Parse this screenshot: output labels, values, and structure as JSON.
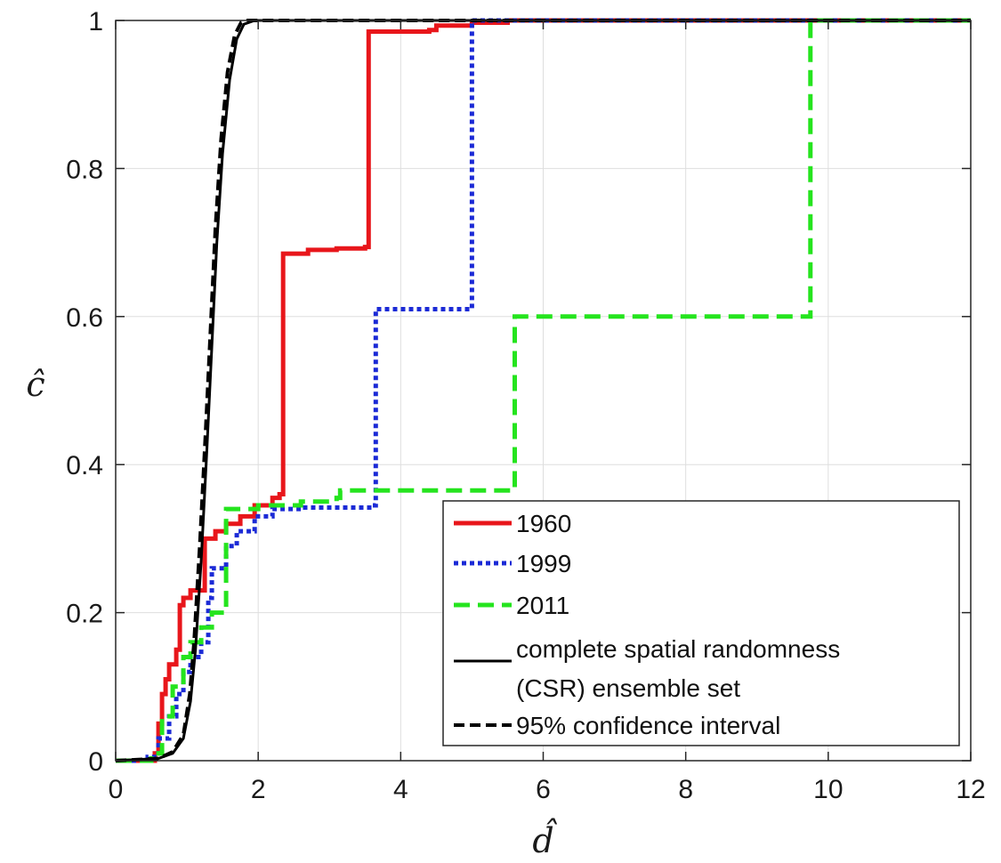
{
  "chart_data": {
    "type": "line",
    "xlabel": "d̂",
    "ylabel": "ĉ",
    "xlim": [
      0,
      12
    ],
    "ylim": [
      0,
      1
    ],
    "xticks": [
      0,
      2,
      4,
      6,
      8,
      10,
      12
    ],
    "yticks": [
      0,
      0.2,
      0.4,
      0.6,
      0.8,
      1
    ],
    "ytick_labels": [
      "0",
      "0.2",
      "0.4",
      "0.6",
      "0.8",
      "1"
    ],
    "grid": true,
    "legend_position": "bottom-right",
    "series": [
      {
        "name": "1960",
        "color": "#e8161b",
        "style": "solid",
        "step": true,
        "points": [
          [
            0,
            0
          ],
          [
            0.55,
            0.01
          ],
          [
            0.6,
            0.05
          ],
          [
            0.65,
            0.09
          ],
          [
            0.7,
            0.11
          ],
          [
            0.75,
            0.13
          ],
          [
            0.85,
            0.15
          ],
          [
            0.9,
            0.21
          ],
          [
            0.95,
            0.22
          ],
          [
            1.05,
            0.23
          ],
          [
            1.2,
            0.23
          ],
          [
            1.25,
            0.3
          ],
          [
            1.4,
            0.31
          ],
          [
            1.55,
            0.32
          ],
          [
            1.75,
            0.33
          ],
          [
            1.95,
            0.345
          ],
          [
            2.2,
            0.355
          ],
          [
            2.3,
            0.36
          ],
          [
            2.35,
            0.685
          ],
          [
            2.7,
            0.69
          ],
          [
            3.1,
            0.692
          ],
          [
            3.5,
            0.694
          ],
          [
            3.55,
            0.985
          ],
          [
            4.4,
            0.987
          ],
          [
            4.5,
            0.993
          ],
          [
            5.0,
            0.997
          ],
          [
            5.5,
            1.0
          ],
          [
            12,
            1.0
          ]
        ]
      },
      {
        "name": "1999",
        "color": "#1b2ad6",
        "style": "dotted",
        "step": true,
        "points": [
          [
            0,
            0
          ],
          [
            0.45,
            0.005
          ],
          [
            0.6,
            0.03
          ],
          [
            0.75,
            0.06
          ],
          [
            0.85,
            0.09
          ],
          [
            0.95,
            0.12
          ],
          [
            1.05,
            0.14
          ],
          [
            1.2,
            0.16
          ],
          [
            1.3,
            0.22
          ],
          [
            1.35,
            0.26
          ],
          [
            1.55,
            0.29
          ],
          [
            1.7,
            0.31
          ],
          [
            1.95,
            0.33
          ],
          [
            2.2,
            0.34
          ],
          [
            2.6,
            0.342
          ],
          [
            3.6,
            0.345
          ],
          [
            3.65,
            0.61
          ],
          [
            4.95,
            0.61
          ],
          [
            5.0,
            1.0
          ],
          [
            12,
            1.0
          ]
        ]
      },
      {
        "name": "2011",
        "color": "#25e41e",
        "style": "dashed",
        "step": true,
        "points": [
          [
            0,
            0
          ],
          [
            0.5,
            0.01
          ],
          [
            0.65,
            0.06
          ],
          [
            0.8,
            0.1
          ],
          [
            0.95,
            0.14
          ],
          [
            1.05,
            0.16
          ],
          [
            1.2,
            0.18
          ],
          [
            1.35,
            0.2
          ],
          [
            1.5,
            0.2
          ],
          [
            1.55,
            0.34
          ],
          [
            2.0,
            0.345
          ],
          [
            2.6,
            0.35
          ],
          [
            3.1,
            0.355
          ],
          [
            3.15,
            0.365
          ],
          [
            5.55,
            0.365
          ],
          [
            5.6,
            0.6
          ],
          [
            9.7,
            0.6
          ],
          [
            9.75,
            1.0
          ],
          [
            12,
            1.0
          ]
        ]
      },
      {
        "name": "complete spatial randomness (CSR) ensemble set",
        "legend_lines": [
          "complete spatial randomness",
          "(CSR) ensemble set"
        ],
        "color": "#000000",
        "style": "solid",
        "step": false,
        "points": [
          [
            0,
            0
          ],
          [
            0.6,
            0.003
          ],
          [
            0.8,
            0.01
          ],
          [
            0.95,
            0.03
          ],
          [
            1.05,
            0.08
          ],
          [
            1.12,
            0.15
          ],
          [
            1.2,
            0.27
          ],
          [
            1.28,
            0.42
          ],
          [
            1.35,
            0.56
          ],
          [
            1.42,
            0.7
          ],
          [
            1.5,
            0.82
          ],
          [
            1.6,
            0.92
          ],
          [
            1.7,
            0.975
          ],
          [
            1.8,
            0.995
          ],
          [
            1.95,
            1.0
          ],
          [
            12,
            1.0
          ]
        ]
      },
      {
        "name": "95% confidence interval",
        "color": "#000000",
        "style": "dashed",
        "step": false,
        "points": [
          [
            0,
            0
          ],
          [
            0.6,
            0.003
          ],
          [
            0.8,
            0.012
          ],
          [
            0.95,
            0.035
          ],
          [
            1.04,
            0.09
          ],
          [
            1.1,
            0.16
          ],
          [
            1.18,
            0.29
          ],
          [
            1.26,
            0.44
          ],
          [
            1.33,
            0.58
          ],
          [
            1.4,
            0.72
          ],
          [
            1.48,
            0.84
          ],
          [
            1.57,
            0.93
          ],
          [
            1.67,
            0.98
          ],
          [
            1.76,
            0.997
          ],
          [
            1.85,
            1.0
          ],
          [
            12,
            1.0
          ]
        ]
      }
    ]
  }
}
